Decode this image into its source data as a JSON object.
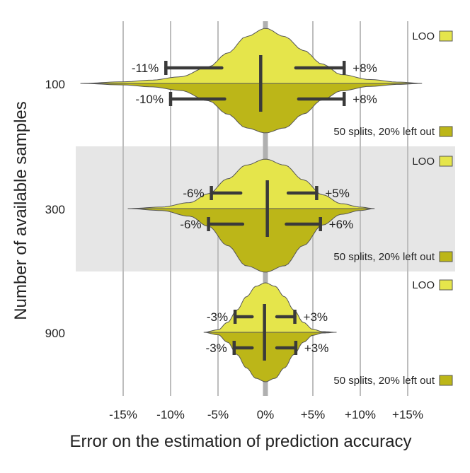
{
  "chart_data": {
    "type": "violin",
    "xlabel": "Error on the estimation of prediction accuracy",
    "ylabel": "Number of available samples",
    "x_ticks": [
      -15,
      -10,
      -5,
      0,
      5,
      10,
      15
    ],
    "x_tick_labels": [
      "-15%",
      "-10%",
      "-5%",
      "0%",
      "+5%",
      "+10%",
      "+15%"
    ],
    "xlim": [
      -20,
      18.5
    ],
    "grid": "vertical",
    "shaded_group": "300",
    "legend_entries": [
      "LOO",
      "50 splits, 20% left out"
    ],
    "legend_placement": "right of each group",
    "colors": {
      "loo": "#e5e54b",
      "splits": "#bcb618",
      "outline": "#555555",
      "whisker": "#3a3a3a",
      "grid": "#bdbdbd",
      "zero_line": "#b0b0b0",
      "band": "#e6e6e6"
    },
    "groups": [
      {
        "samples": "100",
        "loo": {
          "label": "LOO",
          "extent": [
            -19.5,
            16.5
          ],
          "median": -0.5,
          "quartiles": [
            -4.6,
            3.2
          ],
          "percentiles_5_95": [
            -10.5,
            8.3
          ],
          "low_label": "-11%",
          "high_label": "+8%",
          "density": [
            [
              -19.5,
              0
            ],
            [
              -15,
              0.03
            ],
            [
              -12,
              0.06
            ],
            [
              -9,
              0.12
            ],
            [
              -6,
              0.3
            ],
            [
              -4,
              0.55
            ],
            [
              -2,
              0.85
            ],
            [
              0,
              1.0
            ],
            [
              2,
              0.85
            ],
            [
              4,
              0.6
            ],
            [
              6,
              0.35
            ],
            [
              8,
              0.16
            ],
            [
              11,
              0.07
            ],
            [
              14,
              0.025
            ],
            [
              16.5,
              0
            ]
          ]
        },
        "splits": {
          "label": "50 splits, 20% left out",
          "extent": [
            -19.5,
            16.5
          ],
          "median": -0.5,
          "quartiles": [
            -4.3,
            3.5
          ],
          "percentiles_5_95": [
            -10.0,
            8.3
          ],
          "low_label": "-10%",
          "high_label": "+8%",
          "density": [
            [
              -19.5,
              0
            ],
            [
              -15,
              0.03
            ],
            [
              -12,
              0.07
            ],
            [
              -9,
              0.14
            ],
            [
              -6,
              0.35
            ],
            [
              -4,
              0.62
            ],
            [
              -2,
              0.9
            ],
            [
              0,
              1.0
            ],
            [
              2,
              0.9
            ],
            [
              4,
              0.62
            ],
            [
              6,
              0.33
            ],
            [
              8,
              0.15
            ],
            [
              11,
              0.06
            ],
            [
              14,
              0.02
            ],
            [
              16.5,
              0
            ]
          ]
        }
      },
      {
        "samples": "300",
        "loo": {
          "label": "LOO",
          "extent": [
            -14.5,
            11.5
          ],
          "median": 0.2,
          "quartiles": [
            -2.6,
            2.4
          ],
          "percentiles_5_95": [
            -5.7,
            5.4
          ],
          "low_label": "-6%",
          "high_label": "+5%",
          "density": [
            [
              -14.5,
              0
            ],
            [
              -11,
              0.03
            ],
            [
              -8,
              0.12
            ],
            [
              -6,
              0.3
            ],
            [
              -4,
              0.6
            ],
            [
              -2,
              0.88
            ],
            [
              0,
              1.0
            ],
            [
              2,
              0.88
            ],
            [
              4,
              0.58
            ],
            [
              6,
              0.28
            ],
            [
              8,
              0.1
            ],
            [
              10,
              0.03
            ],
            [
              11.5,
              0
            ]
          ]
        },
        "splits": {
          "label": "50 splits, 20% left out",
          "extent": [
            -14.5,
            11.5
          ],
          "median": 0.2,
          "quartiles": [
            -2.4,
            2.2
          ],
          "percentiles_5_95": [
            -6.0,
            5.8
          ],
          "low_label": "-6%",
          "high_label": "+6%",
          "density": [
            [
              -14.5,
              0
            ],
            [
              -11,
              0.03
            ],
            [
              -8,
              0.12
            ],
            [
              -6,
              0.28
            ],
            [
              -4,
              0.58
            ],
            [
              -2,
              0.9
            ],
            [
              0,
              1.0
            ],
            [
              2,
              0.9
            ],
            [
              4,
              0.58
            ],
            [
              6,
              0.26
            ],
            [
              8,
              0.09
            ],
            [
              10,
              0.03
            ],
            [
              11.5,
              0
            ]
          ]
        }
      },
      {
        "samples": "900",
        "loo": {
          "label": "LOO",
          "extent": [
            -6.5,
            7.5
          ],
          "median": -0.1,
          "quartiles": [
            -1.4,
            1.2
          ],
          "percentiles_5_95": [
            -3.2,
            3.1
          ],
          "low_label": "-3%",
          "high_label": "+3%",
          "density": [
            [
              -6.5,
              0
            ],
            [
              -5,
              0.05
            ],
            [
              -4,
              0.2
            ],
            [
              -3,
              0.45
            ],
            [
              -2,
              0.72
            ],
            [
              -1,
              0.93
            ],
            [
              0,
              1.0
            ],
            [
              1,
              0.93
            ],
            [
              2,
              0.72
            ],
            [
              3,
              0.45
            ],
            [
              4,
              0.2
            ],
            [
              5,
              0.06
            ],
            [
              6,
              0.015
            ],
            [
              7.5,
              0
            ]
          ]
        },
        "splits": {
          "label": "50 splits, 20% left out",
          "extent": [
            -6.5,
            7.5
          ],
          "median": -0.1,
          "quartiles": [
            -1.4,
            1.2
          ],
          "percentiles_5_95": [
            -3.3,
            3.2
          ],
          "low_label": "-3%",
          "high_label": "+3%",
          "density": [
            [
              -6.5,
              0
            ],
            [
              -5,
              0.05
            ],
            [
              -4,
              0.2
            ],
            [
              -3,
              0.45
            ],
            [
              -2,
              0.72
            ],
            [
              -1,
              0.93
            ],
            [
              0,
              1.0
            ],
            [
              1,
              0.93
            ],
            [
              2,
              0.72
            ],
            [
              3,
              0.45
            ],
            [
              4,
              0.2
            ],
            [
              5,
              0.06
            ],
            [
              6,
              0.015
            ],
            [
              7.5,
              0
            ]
          ]
        }
      }
    ]
  }
}
